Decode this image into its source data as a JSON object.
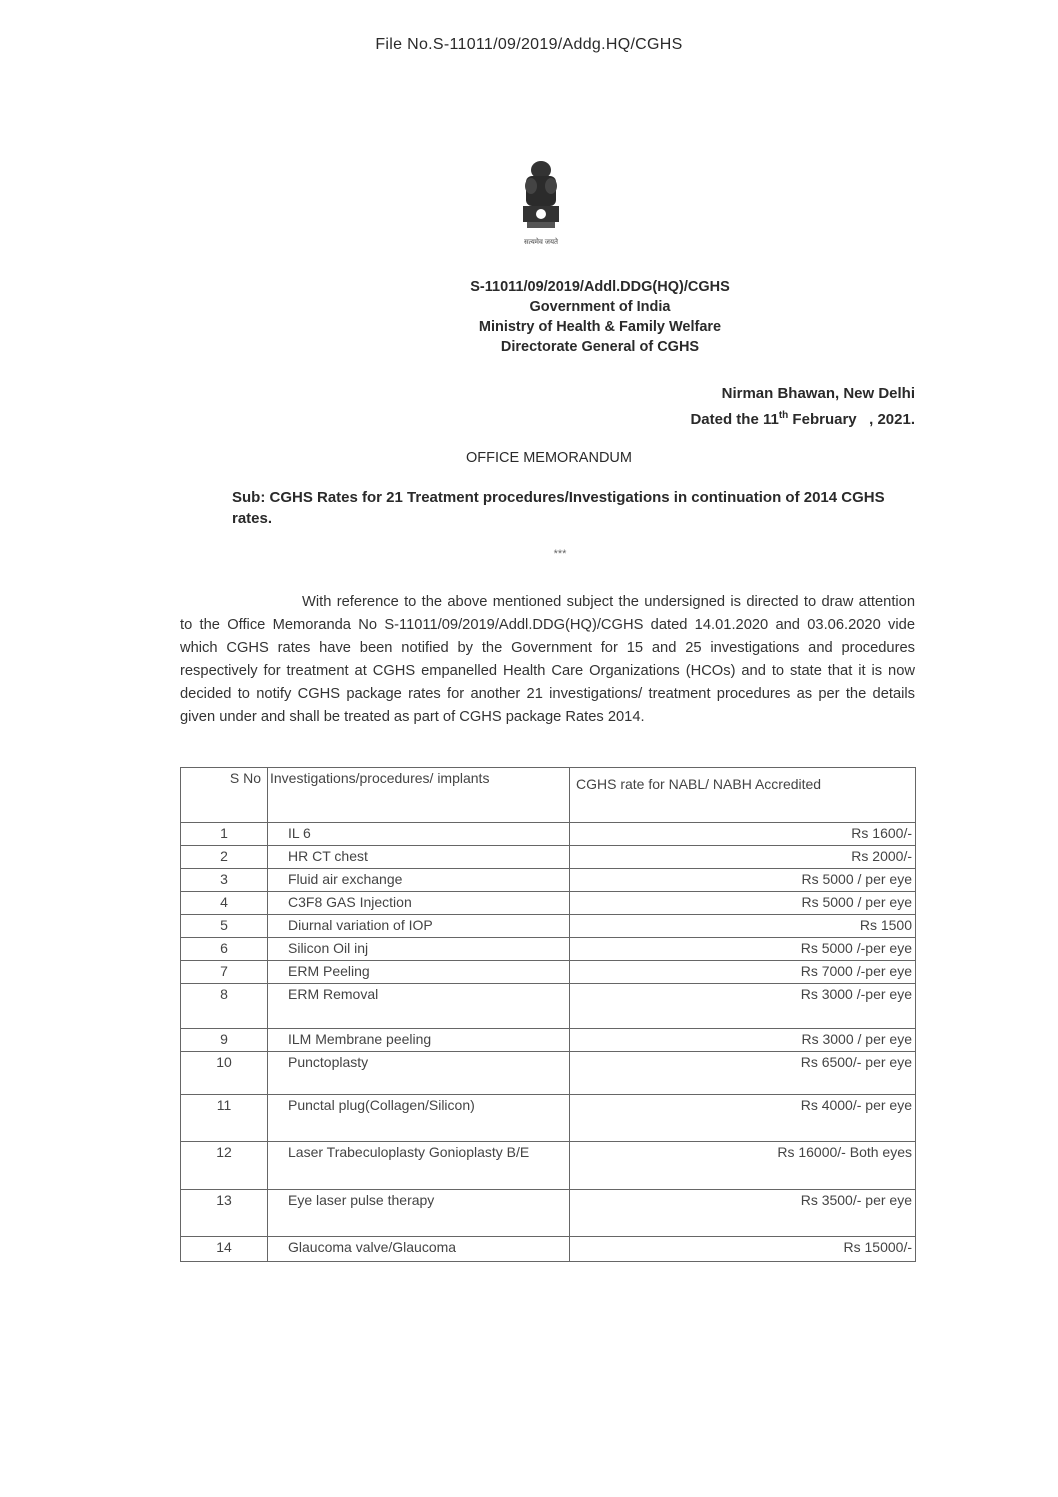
{
  "file_no": "File No.S-11011/09/2019/Addg.HQ/CGHS",
  "emblem_motto": "सत्यमेव जयते",
  "header": {
    "ref": "S-11011/09/2019/Addl.DDG(HQ)/CGHS",
    "line1": "Government of India",
    "line2": "Ministry of Health & Family Welfare",
    "line3": "Directorate General of CGHS"
  },
  "place": "Nirman Bhawan, New Delhi",
  "date": {
    "prefix": "Dated the 11",
    "sup": "th",
    "rest": " February   , 2021."
  },
  "title": "OFFICE MEMORANDUM",
  "subject": "Sub: CGHS Rates for 21 Treatment procedures/Investigations in continuation of 2014 CGHS rates.",
  "stars": "***",
  "paragraph": "With reference to the above mentioned subject the undersigned is directed to draw attention to the Office Memoranda  No S-11011/09/2019/Addl.DDG(HQ)/CGHS dated 14.01.2020  and 03.06.2020 vide which CGHS rates have been notified by the Government for 15 and 25 investigations and procedures respectively for treatment at CGHS empanelled Health Care Organizations (HCOs) and to state that it is now decided to notify CGHS package rates for another 21 investigations/ treatment procedures as per the details given under and shall be treated as part of CGHS package  Rates 2014.",
  "table": {
    "headers": {
      "sno": "S No",
      "inv": "Investigations/procedures/ implants",
      "rate": "CGHS  rate for NABL/ NABH  Accredited"
    },
    "rows": [
      {
        "sno": "1",
        "inv": "IL 6",
        "rate": "Rs 1600/-",
        "h": 23
      },
      {
        "sno": "2",
        "inv": "HR CT chest",
        "rate": "Rs 2000/-",
        "h": 23
      },
      {
        "sno": "3",
        "inv": "Fluid air exchange",
        "rate": "Rs 5000 / per eye",
        "h": 23
      },
      {
        "sno": "4",
        "inv": "C3F8 GAS Injection",
        "rate": "Rs 5000 / per eye",
        "h": 23
      },
      {
        "sno": "5",
        "inv": "Diurnal variation of IOP",
        "rate": "Rs 1500",
        "h": 23
      },
      {
        "sno": "6",
        "inv": "Silicon Oil inj",
        "rate": "Rs 5000 /-per eye",
        "h": 23
      },
      {
        "sno": "7",
        "inv": "ERM Peeling",
        "rate": "Rs 7000 /-per eye",
        "h": 23
      },
      {
        "sno": "8",
        "inv": "ERM Removal",
        "rate": "Rs  3000 /-per eye",
        "h": 45
      },
      {
        "sno": "9",
        "inv": "ILM Membrane peeling",
        "rate": "Rs 3000 / per eye",
        "h": 23
      },
      {
        "sno": "10",
        "inv": "Punctoplasty",
        "rate": "Rs 6500/- per eye",
        "h": 43
      },
      {
        "sno": "11",
        "inv": "Punctal plug(Collagen/Silicon)",
        "rate": "Rs 4000/- per eye",
        "h": 47
      },
      {
        "sno": "12",
        "inv": "Laser Trabeculoplasty Gonioplasty B/E",
        "rate": "Rs 16000/- Both eyes",
        "h": 48
      },
      {
        "sno": "13",
        "inv": "Eye laser pulse therapy",
        "rate": "Rs 3500/- per eye",
        "h": 47
      },
      {
        "sno": "14",
        "inv": "Glaucoma valve/Glaucoma",
        "rate": "Rs 15000/-",
        "h": 25
      }
    ]
  }
}
